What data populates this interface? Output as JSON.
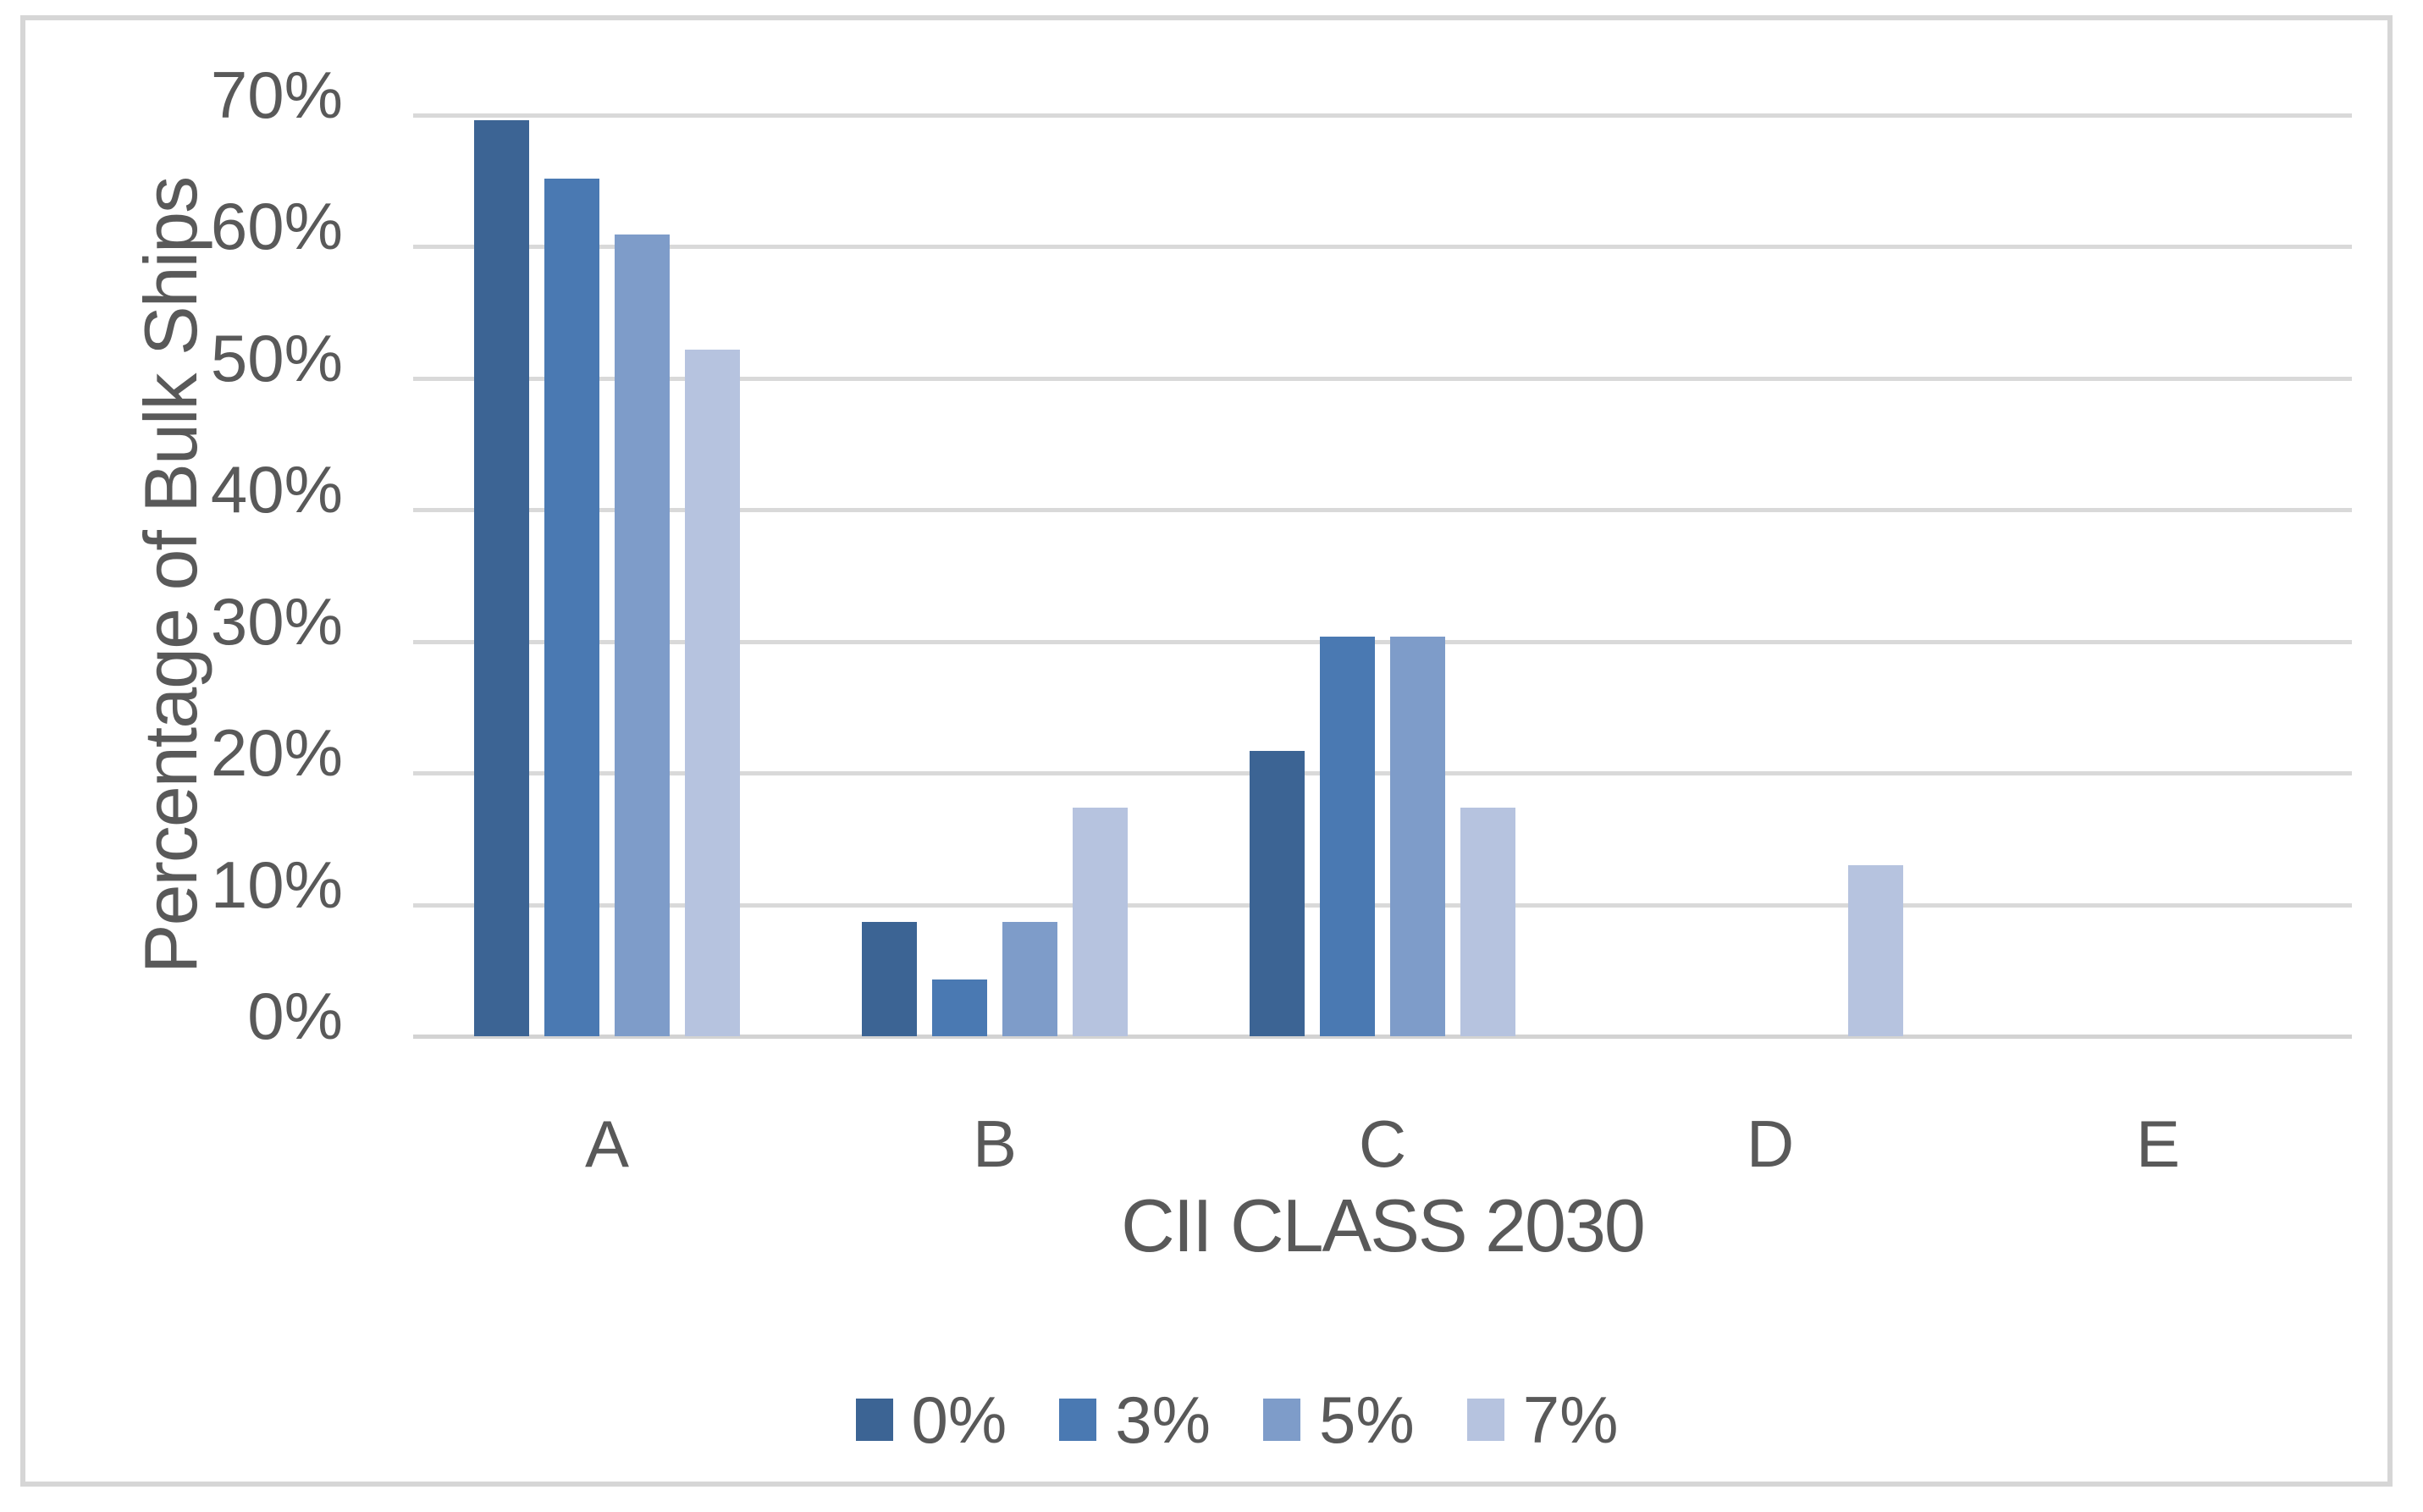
{
  "chart_data": {
    "type": "bar",
    "title": "",
    "xlabel": "CII CLASS 2030",
    "ylabel": "Percentage of Bulk Ships",
    "categories": [
      "A",
      "B",
      "C",
      "D",
      "E"
    ],
    "series": [
      {
        "name": "0%",
        "color": "#3C6494",
        "values": [
          69.6,
          8.7,
          21.7,
          0,
          0
        ]
      },
      {
        "name": "3%",
        "color": "#4A79B2",
        "values": [
          65.2,
          4.3,
          30.4,
          0,
          0
        ]
      },
      {
        "name": "5%",
        "color": "#7E9CC9",
        "values": [
          60.9,
          8.7,
          30.4,
          0,
          0
        ]
      },
      {
        "name": "7%",
        "color": "#B6C3DF",
        "values": [
          52.2,
          17.4,
          17.4,
          13.0,
          0
        ]
      }
    ],
    "ylim": [
      0,
      70
    ],
    "ytick_step": 10,
    "ytick_labels": [
      "0%",
      "10%",
      "20%",
      "30%",
      "40%",
      "50%",
      "60%",
      "70%"
    ],
    "grid": true,
    "legend_position": "bottom"
  },
  "colors": {
    "text": "#595959",
    "gridline": "#D9D9D9",
    "frame_border": "#D6D6D6",
    "background": "#FFFFFF"
  }
}
